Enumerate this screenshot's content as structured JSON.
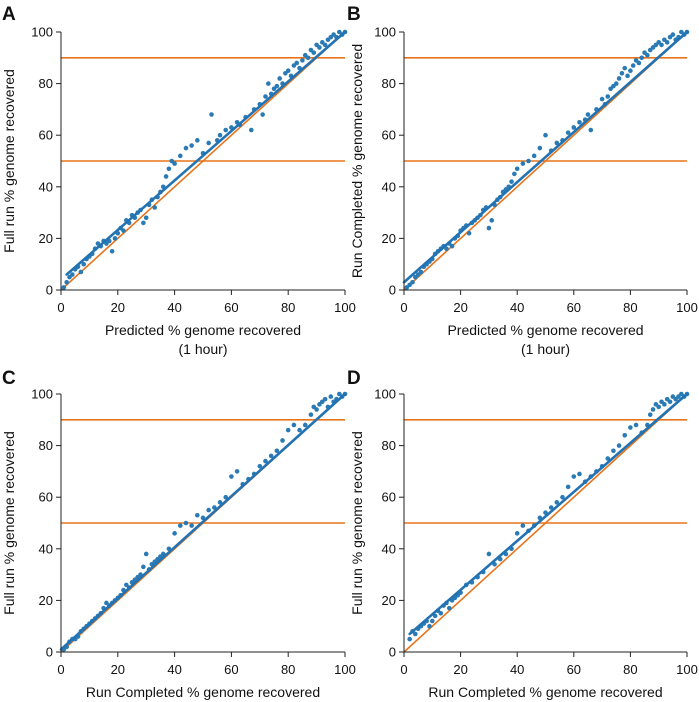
{
  "colors": {
    "points": "#2a7ab5",
    "fit_line": "#2372b2",
    "reference": "#e8731a",
    "axis": "#222222"
  },
  "chart_data": [
    {
      "type": "scatter",
      "panel": "A",
      "xlabel": "Predicted % genome recovered",
      "xlabel2": "(1 hour)",
      "ylabel": "Full run % genome recovered",
      "xlim": [
        0,
        100
      ],
      "ylim": [
        0,
        100
      ],
      "xticks": [
        "0",
        "20",
        "40",
        "60",
        "80",
        "100"
      ],
      "yticks": [
        "0",
        "20",
        "40",
        "60",
        "80",
        "100"
      ],
      "hlines": [
        50,
        90
      ],
      "identity_line": [
        [
          0,
          0
        ],
        [
          100,
          100
        ]
      ],
      "fit_line": [
        [
          2,
          6
        ],
        [
          100,
          100
        ]
      ],
      "points": [
        [
          1,
          1
        ],
        [
          2,
          3
        ],
        [
          3,
          5
        ],
        [
          4,
          6
        ],
        [
          5,
          8
        ],
        [
          6,
          9
        ],
        [
          7,
          7
        ],
        [
          8,
          10
        ],
        [
          9,
          12
        ],
        [
          10,
          13
        ],
        [
          11,
          14
        ],
        [
          12,
          16
        ],
        [
          13,
          18
        ],
        [
          14,
          17
        ],
        [
          15,
          19
        ],
        [
          16,
          18
        ],
        [
          17,
          19
        ],
        [
          18,
          15
        ],
        [
          19,
          20
        ],
        [
          20,
          22
        ],
        [
          21,
          24
        ],
        [
          22,
          23
        ],
        [
          23,
          27
        ],
        [
          24,
          26
        ],
        [
          25,
          29
        ],
        [
          26,
          28
        ],
        [
          27,
          30
        ],
        [
          28,
          31
        ],
        [
          29,
          26
        ],
        [
          30,
          28
        ],
        [
          31,
          33
        ],
        [
          32,
          35
        ],
        [
          33,
          32
        ],
        [
          34,
          36
        ],
        [
          35,
          38
        ],
        [
          36,
          40
        ],
        [
          37,
          44
        ],
        [
          38,
          47
        ],
        [
          39,
          50
        ],
        [
          40,
          49
        ],
        [
          42,
          52
        ],
        [
          44,
          55
        ],
        [
          46,
          56
        ],
        [
          48,
          58
        ],
        [
          50,
          53
        ],
        [
          52,
          57
        ],
        [
          53,
          68
        ],
        [
          55,
          58
        ],
        [
          56,
          60
        ],
        [
          58,
          62
        ],
        [
          60,
          63
        ],
        [
          62,
          65
        ],
        [
          63,
          64
        ],
        [
          65,
          67
        ],
        [
          67,
          62
        ],
        [
          68,
          70
        ],
        [
          70,
          72
        ],
        [
          71,
          68
        ],
        [
          72,
          75
        ],
        [
          73,
          80
        ],
        [
          74,
          76
        ],
        [
          75,
          78
        ],
        [
          76,
          79
        ],
        [
          77,
          82
        ],
        [
          78,
          80
        ],
        [
          79,
          84
        ],
        [
          80,
          85
        ],
        [
          81,
          83
        ],
        [
          82,
          87
        ],
        [
          83,
          88
        ],
        [
          84,
          86
        ],
        [
          85,
          89
        ],
        [
          86,
          91
        ],
        [
          87,
          90
        ],
        [
          88,
          93
        ],
        [
          89,
          92
        ],
        [
          90,
          95
        ],
        [
          91,
          94
        ],
        [
          92,
          96
        ],
        [
          93,
          95
        ],
        [
          94,
          97
        ],
        [
          95,
          98
        ],
        [
          96,
          99
        ],
        [
          97,
          98
        ],
        [
          98,
          100
        ],
        [
          99,
          99
        ],
        [
          100,
          100
        ]
      ]
    },
    {
      "type": "scatter",
      "panel": "B",
      "xlabel": "Predicted % genome recovered",
      "xlabel2": "(1 hour)",
      "ylabel": "Run Completed % genome recovered",
      "xlim": [
        0,
        100
      ],
      "ylim": [
        0,
        100
      ],
      "xticks": [
        "0",
        "20",
        "40",
        "60",
        "80",
        "100"
      ],
      "yticks": [
        "0",
        "20",
        "40",
        "60",
        "80",
        "100"
      ],
      "hlines": [
        50,
        90
      ],
      "identity_line": [
        [
          0,
          0
        ],
        [
          100,
          100
        ]
      ],
      "fit_line": [
        [
          0,
          3
        ],
        [
          100,
          100
        ]
      ],
      "points": [
        [
          1,
          1
        ],
        [
          2,
          2
        ],
        [
          3,
          3
        ],
        [
          4,
          5
        ],
        [
          5,
          6
        ],
        [
          6,
          7
        ],
        [
          7,
          9
        ],
        [
          8,
          10
        ],
        [
          9,
          11
        ],
        [
          10,
          12
        ],
        [
          11,
          14
        ],
        [
          12,
          15
        ],
        [
          13,
          16
        ],
        [
          14,
          17
        ],
        [
          15,
          16
        ],
        [
          16,
          18
        ],
        [
          17,
          17
        ],
        [
          18,
          20
        ],
        [
          19,
          21
        ],
        [
          20,
          23
        ],
        [
          21,
          24
        ],
        [
          22,
          25
        ],
        [
          23,
          22
        ],
        [
          24,
          26
        ],
        [
          25,
          27
        ],
        [
          26,
          28
        ],
        [
          27,
          29
        ],
        [
          28,
          31
        ],
        [
          29,
          32
        ],
        [
          30,
          24
        ],
        [
          31,
          27
        ],
        [
          32,
          33
        ],
        [
          33,
          35
        ],
        [
          34,
          36
        ],
        [
          35,
          38
        ],
        [
          36,
          39
        ],
        [
          37,
          40
        ],
        [
          38,
          42
        ],
        [
          39,
          45
        ],
        [
          40,
          47
        ],
        [
          42,
          49
        ],
        [
          44,
          50
        ],
        [
          46,
          52
        ],
        [
          48,
          55
        ],
        [
          50,
          60
        ],
        [
          52,
          54
        ],
        [
          54,
          57
        ],
        [
          56,
          58
        ],
        [
          58,
          61
        ],
        [
          60,
          63
        ],
        [
          62,
          65
        ],
        [
          64,
          66
        ],
        [
          65,
          68
        ],
        [
          66,
          62
        ],
        [
          68,
          70
        ],
        [
          70,
          74
        ],
        [
          71,
          72
        ],
        [
          72,
          75
        ],
        [
          73,
          78
        ],
        [
          74,
          79
        ],
        [
          75,
          80
        ],
        [
          76,
          82
        ],
        [
          77,
          84
        ],
        [
          78,
          86
        ],
        [
          79,
          83
        ],
        [
          80,
          85
        ],
        [
          81,
          87
        ],
        [
          82,
          89
        ],
        [
          83,
          88
        ],
        [
          84,
          90
        ],
        [
          85,
          92
        ],
        [
          86,
          91
        ],
        [
          87,
          93
        ],
        [
          88,
          94
        ],
        [
          89,
          95
        ],
        [
          90,
          96
        ],
        [
          91,
          95
        ],
        [
          92,
          97
        ],
        [
          93,
          96
        ],
        [
          94,
          98
        ],
        [
          95,
          99
        ],
        [
          96,
          97
        ],
        [
          97,
          98
        ],
        [
          98,
          100
        ],
        [
          99,
          99
        ],
        [
          100,
          100
        ]
      ]
    },
    {
      "type": "scatter",
      "panel": "C",
      "xlabel": "Run Completed % genome recovered",
      "ylabel": "Full run % genome recovered",
      "xlim": [
        0,
        100
      ],
      "ylim": [
        0,
        100
      ],
      "xticks": [
        "0",
        "20",
        "40",
        "60",
        "80",
        "100"
      ],
      "yticks": [
        "0",
        "20",
        "40",
        "60",
        "80",
        "100"
      ],
      "hlines": [
        50,
        90
      ],
      "identity_line": [
        [
          0,
          0
        ],
        [
          100,
          100
        ]
      ],
      "fit_line": [
        [
          0,
          1
        ],
        [
          100,
          100
        ]
      ],
      "points": [
        [
          1,
          1
        ],
        [
          2,
          2
        ],
        [
          3,
          4
        ],
        [
          4,
          5
        ],
        [
          5,
          5
        ],
        [
          6,
          6
        ],
        [
          7,
          8
        ],
        [
          8,
          9
        ],
        [
          9,
          10
        ],
        [
          10,
          11
        ],
        [
          11,
          12
        ],
        [
          12,
          13
        ],
        [
          13,
          14
        ],
        [
          14,
          15
        ],
        [
          15,
          17
        ],
        [
          16,
          19
        ],
        [
          17,
          18
        ],
        [
          18,
          19
        ],
        [
          19,
          20
        ],
        [
          20,
          21
        ],
        [
          21,
          22
        ],
        [
          22,
          24
        ],
        [
          23,
          26
        ],
        [
          24,
          25
        ],
        [
          25,
          27
        ],
        [
          26,
          28
        ],
        [
          27,
          29
        ],
        [
          28,
          30
        ],
        [
          29,
          33
        ],
        [
          30,
          38
        ],
        [
          31,
          32
        ],
        [
          32,
          34
        ],
        [
          33,
          35
        ],
        [
          34,
          36
        ],
        [
          35,
          37
        ],
        [
          36,
          38
        ],
        [
          38,
          40
        ],
        [
          40,
          46
        ],
        [
          42,
          49
        ],
        [
          44,
          50
        ],
        [
          46,
          49
        ],
        [
          48,
          53
        ],
        [
          50,
          52
        ],
        [
          52,
          55
        ],
        [
          54,
          56
        ],
        [
          56,
          58
        ],
        [
          58,
          60
        ],
        [
          60,
          68
        ],
        [
          62,
          70
        ],
        [
          64,
          65
        ],
        [
          66,
          67
        ],
        [
          68,
          69
        ],
        [
          70,
          72
        ],
        [
          72,
          74
        ],
        [
          74,
          76
        ],
        [
          76,
          78
        ],
        [
          78,
          82
        ],
        [
          80,
          86
        ],
        [
          82,
          88
        ],
        [
          84,
          86
        ],
        [
          86,
          88
        ],
        [
          88,
          92
        ],
        [
          89,
          95
        ],
        [
          90,
          94
        ],
        [
          91,
          96
        ],
        [
          92,
          97
        ],
        [
          93,
          98
        ],
        [
          94,
          95
        ],
        [
          95,
          99
        ],
        [
          96,
          97
        ],
        [
          97,
          98
        ],
        [
          98,
          100
        ],
        [
          99,
          99
        ],
        [
          100,
          100
        ]
      ]
    },
    {
      "type": "scatter",
      "panel": "D",
      "xlabel": "Run Completed % genome recovered",
      "ylabel": "Full run % genome recovered",
      "xlim": [
        0,
        100
      ],
      "ylim": [
        0,
        100
      ],
      "xticks": [
        "0",
        "20",
        "40",
        "60",
        "80",
        "100"
      ],
      "yticks": [
        "0",
        "20",
        "40",
        "60",
        "80",
        "100"
      ],
      "hlines": [
        50,
        90
      ],
      "identity_line": [
        [
          0,
          0
        ],
        [
          100,
          100
        ]
      ],
      "fit_line": [
        [
          2,
          7
        ],
        [
          100,
          100
        ]
      ],
      "points": [
        [
          2,
          5
        ],
        [
          3,
          8
        ],
        [
          4,
          7
        ],
        [
          5,
          9
        ],
        [
          6,
          10
        ],
        [
          7,
          11
        ],
        [
          8,
          12
        ],
        [
          9,
          10
        ],
        [
          10,
          12
        ],
        [
          11,
          14
        ],
        [
          12,
          16
        ],
        [
          13,
          15
        ],
        [
          14,
          18
        ],
        [
          15,
          19
        ],
        [
          16,
          17
        ],
        [
          17,
          20
        ],
        [
          18,
          21
        ],
        [
          19,
          22
        ],
        [
          20,
          23
        ],
        [
          22,
          26
        ],
        [
          24,
          27
        ],
        [
          26,
          29
        ],
        [
          28,
          31
        ],
        [
          30,
          38
        ],
        [
          32,
          34
        ],
        [
          34,
          36
        ],
        [
          36,
          38
        ],
        [
          38,
          40
        ],
        [
          40,
          46
        ],
        [
          42,
          49
        ],
        [
          44,
          47
        ],
        [
          46,
          49
        ],
        [
          48,
          52
        ],
        [
          50,
          54
        ],
        [
          52,
          56
        ],
        [
          54,
          58
        ],
        [
          56,
          60
        ],
        [
          58,
          64
        ],
        [
          60,
          68
        ],
        [
          62,
          69
        ],
        [
          64,
          66
        ],
        [
          66,
          68
        ],
        [
          68,
          70
        ],
        [
          70,
          72
        ],
        [
          72,
          75
        ],
        [
          74,
          78
        ],
        [
          76,
          80
        ],
        [
          78,
          84
        ],
        [
          80,
          87
        ],
        [
          82,
          88
        ],
        [
          84,
          85
        ],
        [
          86,
          88
        ],
        [
          87,
          92
        ],
        [
          88,
          94
        ],
        [
          89,
          96
        ],
        [
          90,
          95
        ],
        [
          91,
          97
        ],
        [
          92,
          96
        ],
        [
          93,
          98
        ],
        [
          94,
          97
        ],
        [
          95,
          99
        ],
        [
          96,
          98
        ],
        [
          97,
          99
        ],
        [
          98,
          100
        ],
        [
          99,
          99
        ],
        [
          100,
          100
        ]
      ]
    }
  ]
}
